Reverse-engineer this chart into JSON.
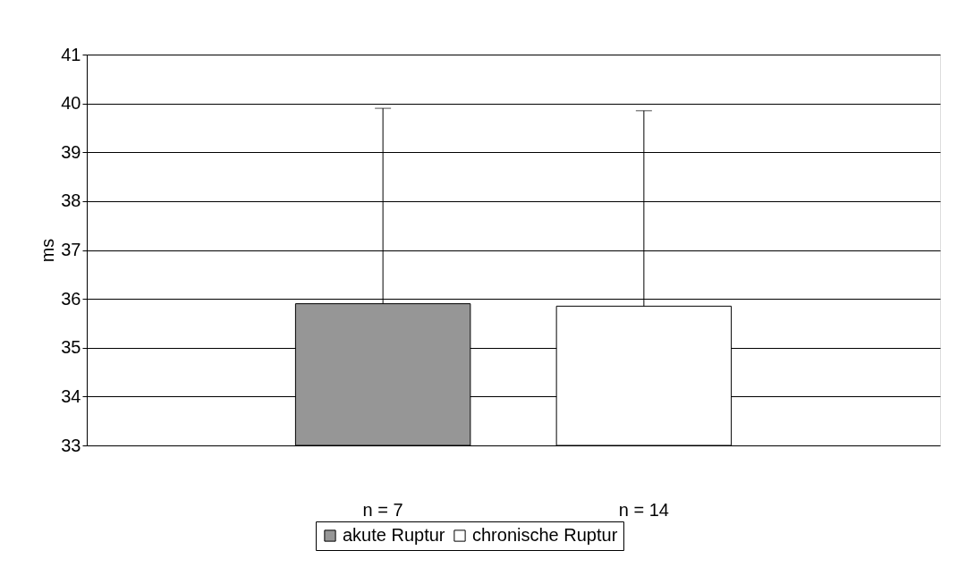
{
  "chart_data": {
    "type": "bar",
    "ylabel": "ms",
    "categories": [
      "n = 7",
      "n = 14"
    ],
    "series": [
      {
        "name": "akute Ruptur",
        "color": "#969696",
        "values": [
          35.9,
          null
        ],
        "errors": [
          [
            35.9,
            39.9
          ],
          null
        ]
      },
      {
        "name": "chronische Ruptur",
        "color": "#ffffff",
        "values": [
          null,
          35.85
        ],
        "errors": [
          null,
          [
            35.85,
            39.85
          ]
        ]
      }
    ],
    "ylim": [
      33,
      41
    ],
    "yticks": [
      33,
      34,
      35,
      36,
      37,
      38,
      39,
      40,
      41
    ],
    "grid": "y",
    "legend": "bottom"
  }
}
